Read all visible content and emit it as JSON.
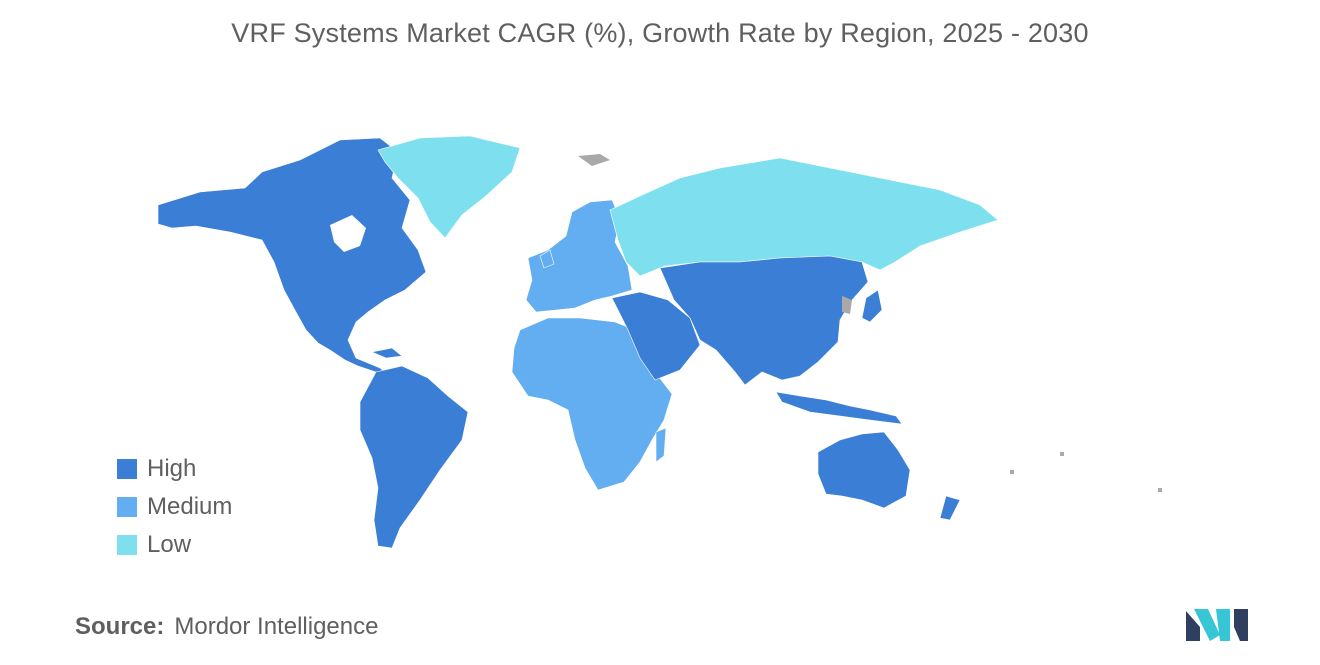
{
  "title": "VRF Systems Market CAGR (%), Growth Rate by Region, 2025 - 2030",
  "legend": [
    {
      "label": "High",
      "color": "#3a7fd5"
    },
    {
      "label": "Medium",
      "color": "#62aef0"
    },
    {
      "label": "Low",
      "color": "#7ee0ee"
    }
  ],
  "no_data_color": "#a9a9a9",
  "source": {
    "label": "Source:",
    "value": "Mordor Intelligence"
  },
  "regions": [
    {
      "name": "North America",
      "level": "High"
    },
    {
      "name": "South America",
      "level": "High"
    },
    {
      "name": "Asia-Pacific",
      "level": "High"
    },
    {
      "name": "Middle East",
      "level": "High"
    },
    {
      "name": "Europe",
      "level": "Medium"
    },
    {
      "name": "Africa",
      "level": "Medium"
    },
    {
      "name": "Russia",
      "level": "Low"
    },
    {
      "name": "Greenland",
      "level": "Low"
    }
  ]
}
